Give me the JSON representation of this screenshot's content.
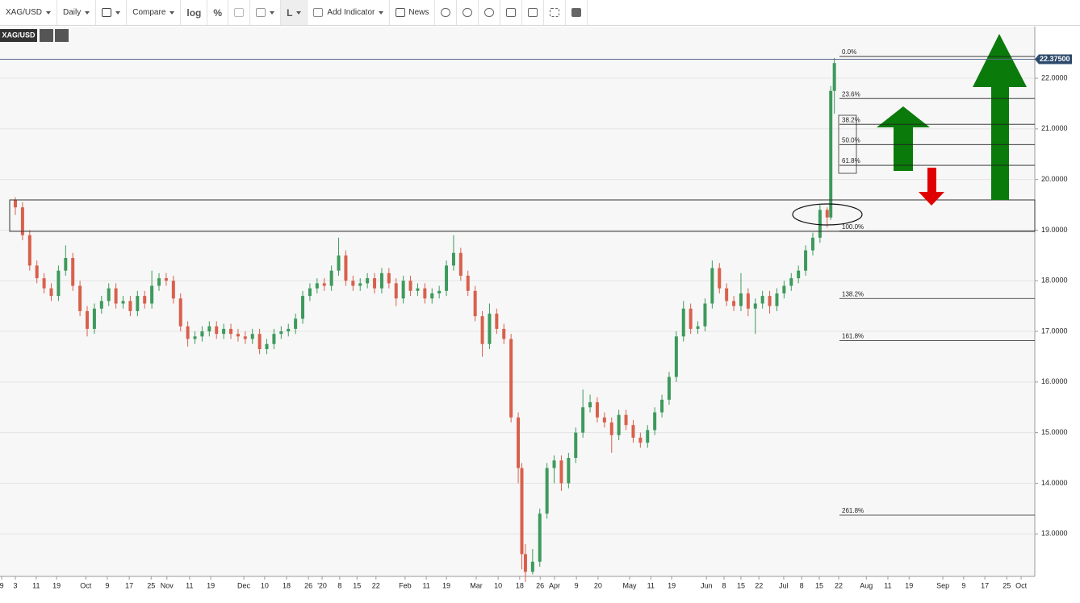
{
  "toolbar": {
    "symbol": "XAG/USD",
    "interval": "Daily",
    "compare": "Compare",
    "log": "log",
    "percent": "%",
    "line": "L",
    "add_indicator": "Add Indicator",
    "news": "News"
  },
  "chart_data": {
    "type": "candlestick",
    "symbol": "XAG/USD",
    "up_color": "#3d9a5c",
    "down_color": "#d9604c",
    "grid": true,
    "x": [
      0,
      2,
      4,
      6,
      8,
      10,
      12,
      14,
      16,
      18,
      20,
      22,
      24,
      26,
      28,
      30,
      32,
      34,
      36,
      38,
      40,
      42,
      44,
      46,
      48,
      50,
      52,
      54,
      56,
      58,
      60,
      62,
      64,
      66,
      68,
      70,
      72,
      74,
      76,
      78,
      80,
      82,
      84,
      86,
      88,
      90,
      92,
      94,
      96,
      98,
      100,
      102,
      104,
      106,
      108,
      110,
      112,
      114,
      116,
      118,
      120,
      122,
      124,
      126,
      128,
      130,
      132,
      134,
      136,
      138,
      140,
      141,
      142,
      144,
      146,
      148,
      150,
      152,
      154,
      156,
      158,
      160,
      162,
      164,
      166,
      168,
      170,
      172,
      174,
      176,
      178,
      180,
      182,
      184,
      186,
      188,
      190,
      192,
      194,
      196,
      198,
      200,
      202,
      204,
      206,
      208,
      210,
      212,
      214,
      216,
      218,
      220,
      222,
      224,
      226,
      227,
      228
    ],
    "open": [
      19.6,
      19.45,
      18.9,
      18.3,
      18.05,
      17.85,
      17.7,
      18.2,
      18.45,
      17.9,
      17.4,
      17.05,
      17.45,
      17.6,
      17.85,
      17.55,
      17.6,
      17.4,
      17.7,
      17.55,
      17.9,
      18.05,
      18.0,
      17.65,
      17.1,
      16.85,
      16.9,
      17.0,
      17.1,
      16.95,
      17.05,
      16.95,
      16.9,
      16.85,
      16.95,
      16.65,
      16.75,
      16.95,
      17.0,
      17.05,
      17.25,
      17.7,
      17.85,
      17.95,
      17.9,
      18.2,
      18.5,
      18.0,
      17.9,
      17.95,
      18.05,
      17.85,
      18.15,
      17.95,
      17.65,
      18.0,
      17.8,
      17.85,
      17.65,
      17.75,
      17.8,
      18.3,
      18.55,
      18.1,
      17.8,
      17.3,
      16.75,
      17.35,
      17.05,
      16.85,
      15.3,
      14.3,
      12.6,
      12.25,
      12.45,
      13.4,
      14.3,
      14.45,
      14.0,
      14.5,
      15.0,
      15.5,
      15.6,
      15.3,
      15.2,
      14.95,
      15.35,
      15.15,
      14.9,
      14.8,
      15.05,
      15.4,
      15.65,
      16.1,
      16.9,
      17.45,
      17.05,
      17.1,
      17.55,
      18.25,
      17.85,
      17.6,
      17.5,
      17.75,
      17.45,
      17.55,
      17.7,
      17.5,
      17.75,
      17.9,
      18.05,
      18.2,
      18.6,
      18.85,
      19.4,
      19.25,
      21.75
    ],
    "high": [
      19.65,
      19.55,
      19.0,
      18.4,
      18.15,
      17.95,
      18.3,
      18.7,
      18.55,
      18.0,
      17.5,
      17.55,
      17.7,
      17.95,
      17.95,
      17.7,
      17.7,
      17.8,
      17.8,
      18.2,
      18.15,
      18.15,
      18.1,
      17.75,
      17.2,
      17.0,
      17.1,
      17.2,
      17.2,
      17.15,
      17.15,
      17.05,
      17.0,
      17.05,
      17.05,
      16.85,
      17.05,
      17.1,
      17.15,
      17.35,
      17.8,
      17.95,
      18.05,
      18.05,
      18.3,
      18.85,
      18.6,
      18.1,
      18.05,
      18.15,
      18.15,
      18.25,
      18.25,
      18.05,
      18.1,
      18.1,
      17.95,
      17.95,
      17.85,
      17.9,
      18.4,
      18.9,
      18.65,
      18.2,
      17.9,
      17.4,
      17.55,
      17.45,
      17.15,
      16.95,
      15.4,
      14.4,
      12.8,
      12.7,
      13.5,
      14.4,
      14.55,
      14.55,
      14.6,
      15.1,
      15.85,
      15.75,
      15.7,
      15.4,
      15.3,
      15.45,
      15.45,
      15.25,
      15.0,
      15.15,
      15.5,
      15.75,
      16.2,
      17.0,
      17.6,
      17.55,
      17.2,
      17.65,
      18.4,
      18.35,
      17.95,
      17.7,
      18.15,
      17.85,
      17.65,
      17.8,
      17.8,
      17.85,
      18.0,
      18.15,
      18.3,
      18.7,
      18.95,
      19.5,
      19.45,
      21.85,
      22.4
    ],
    "low": [
      19.3,
      18.8,
      18.2,
      17.95,
      17.75,
      17.6,
      17.6,
      18.1,
      17.8,
      17.3,
      16.9,
      16.95,
      17.35,
      17.5,
      17.45,
      17.45,
      17.3,
      17.3,
      17.45,
      17.45,
      17.8,
      17.9,
      17.55,
      17.0,
      16.7,
      16.75,
      16.8,
      16.9,
      16.85,
      16.85,
      16.85,
      16.8,
      16.75,
      16.75,
      16.55,
      16.55,
      16.65,
      16.85,
      16.9,
      16.95,
      17.15,
      17.6,
      17.75,
      17.8,
      17.8,
      18.1,
      17.9,
      17.8,
      17.8,
      17.85,
      17.75,
      17.75,
      17.85,
      17.5,
      17.55,
      17.7,
      17.7,
      17.55,
      17.55,
      17.65,
      17.7,
      18.2,
      18.0,
      17.7,
      17.2,
      16.5,
      16.65,
      16.95,
      16.75,
      15.2,
      14.0,
      12.3,
      12.05,
      12.2,
      12.35,
      13.3,
      14.0,
      13.85,
      13.9,
      14.4,
      14.9,
      15.4,
      15.2,
      15.1,
      14.6,
      14.85,
      15.05,
      14.8,
      14.7,
      14.7,
      14.95,
      15.3,
      15.55,
      16.0,
      16.8,
      16.95,
      16.95,
      17.0,
      17.45,
      17.75,
      17.5,
      17.4,
      17.4,
      17.3,
      16.95,
      17.45,
      17.35,
      17.4,
      17.65,
      17.8,
      17.95,
      18.1,
      18.5,
      18.75,
      19.05,
      19.2,
      21.3
    ],
    "close": [
      19.45,
      18.9,
      18.3,
      18.05,
      17.85,
      17.7,
      18.2,
      18.45,
      17.9,
      17.4,
      17.05,
      17.45,
      17.6,
      17.85,
      17.55,
      17.6,
      17.4,
      17.7,
      17.55,
      17.9,
      18.05,
      18.0,
      17.65,
      17.1,
      16.85,
      16.9,
      17.0,
      17.1,
      16.95,
      17.05,
      16.95,
      16.9,
      16.85,
      16.95,
      16.65,
      16.75,
      16.95,
      17.0,
      17.05,
      17.25,
      17.7,
      17.85,
      17.95,
      17.9,
      18.2,
      18.5,
      18.0,
      17.9,
      17.95,
      18.05,
      17.85,
      18.15,
      17.95,
      17.65,
      18.0,
      17.8,
      17.85,
      17.65,
      17.75,
      17.8,
      18.3,
      18.55,
      18.1,
      17.8,
      17.3,
      16.75,
      17.35,
      17.05,
      16.85,
      15.3,
      14.3,
      12.6,
      12.25,
      12.45,
      13.4,
      14.3,
      14.45,
      14.0,
      14.5,
      15.0,
      15.5,
      15.6,
      15.3,
      15.2,
      14.95,
      15.35,
      15.15,
      14.9,
      14.8,
      15.05,
      15.4,
      15.65,
      16.1,
      16.9,
      17.45,
      17.05,
      17.1,
      17.55,
      18.25,
      17.85,
      17.6,
      17.5,
      17.75,
      17.45,
      17.55,
      17.7,
      17.5,
      17.75,
      17.9,
      18.05,
      18.2,
      18.6,
      18.85,
      19.4,
      19.25,
      21.75,
      22.3
    ],
    "xlim": [
      -4.27,
      283.8
    ],
    "xticks": [
      {
        "value": -3.8,
        "label": "9"
      },
      {
        "value": 0,
        "label": "3"
      },
      {
        "value": 5.8,
        "label": "11"
      },
      {
        "value": 11.5,
        "label": "19"
      },
      {
        "value": 19.6,
        "label": "Oct"
      },
      {
        "value": 25.6,
        "label": "9"
      },
      {
        "value": 31.7,
        "label": "17"
      },
      {
        "value": 37.8,
        "label": "25"
      },
      {
        "value": 42.2,
        "label": "Nov"
      },
      {
        "value": 48.5,
        "label": "11"
      },
      {
        "value": 54.4,
        "label": "19"
      },
      {
        "value": 63.6,
        "label": "Dec"
      },
      {
        "value": 69.4,
        "label": "10"
      },
      {
        "value": 75.5,
        "label": "18"
      },
      {
        "value": 81.6,
        "label": "26"
      },
      {
        "value": 85.4,
        "label": "'20"
      },
      {
        "value": 90.3,
        "label": "8"
      },
      {
        "value": 95.1,
        "label": "15"
      },
      {
        "value": 100.4,
        "label": "22"
      },
      {
        "value": 108.5,
        "label": "Feb"
      },
      {
        "value": 114.4,
        "label": "11"
      },
      {
        "value": 120,
        "label": "19"
      },
      {
        "value": 128.3,
        "label": "Mar"
      },
      {
        "value": 134.4,
        "label": "10"
      },
      {
        "value": 140.4,
        "label": "18"
      },
      {
        "value": 146.1,
        "label": "26"
      },
      {
        "value": 150.1,
        "label": "Apr"
      },
      {
        "value": 156.2,
        "label": "9"
      },
      {
        "value": 162.2,
        "label": "20"
      },
      {
        "value": 171,
        "label": "May"
      },
      {
        "value": 176.9,
        "label": "11"
      },
      {
        "value": 182.7,
        "label": "19"
      },
      {
        "value": 192.4,
        "label": "Jun"
      },
      {
        "value": 197.3,
        "label": "8"
      },
      {
        "value": 202,
        "label": "15"
      },
      {
        "value": 207,
        "label": "22"
      },
      {
        "value": 213.9,
        "label": "Jul"
      },
      {
        "value": 218.9,
        "label": "8"
      },
      {
        "value": 223.8,
        "label": "15"
      },
      {
        "value": 229.2,
        "label": "22"
      },
      {
        "value": 236.9,
        "label": "Aug"
      },
      {
        "value": 242.9,
        "label": "11"
      },
      {
        "value": 248.8,
        "label": "19"
      },
      {
        "value": 258.2,
        "label": "Sep"
      },
      {
        "value": 264,
        "label": "9"
      },
      {
        "value": 269.9,
        "label": "17"
      },
      {
        "value": 276,
        "label": "25"
      },
      {
        "value": 280,
        "label": "Oct"
      }
    ],
    "ylim": [
      12.16,
      23.02
    ],
    "yticks": [
      {
        "value": 13,
        "label": "13.0000"
      },
      {
        "value": 14,
        "label": "14.0000"
      },
      {
        "value": 15,
        "label": "15.0000"
      },
      {
        "value": 16,
        "label": "16.0000"
      },
      {
        "value": 17,
        "label": "17.0000"
      },
      {
        "value": 18,
        "label": "18.0000"
      },
      {
        "value": 19,
        "label": "19.0000"
      },
      {
        "value": 20,
        "label": "20.0000"
      },
      {
        "value": 21,
        "label": "21.0000"
      },
      {
        "value": 22,
        "label": "22.0000"
      }
    ],
    "last_price": {
      "value": 22.375,
      "label": "22.37500"
    },
    "fib_levels": [
      {
        "label": "0.0%",
        "value": 22.43
      },
      {
        "label": "23.6%",
        "value": 21.6
      },
      {
        "label": "38.2%",
        "value": 21.09
      },
      {
        "label": "50.0%",
        "value": 20.69
      },
      {
        "label": "61.8%",
        "value": 20.28
      },
      {
        "label": "100.0%",
        "value": 18.98
      },
      {
        "label": "138.2%",
        "value": 17.65
      },
      {
        "label": "161.8%",
        "value": 16.82
      },
      {
        "label": "261.8%",
        "value": 13.37
      }
    ]
  }
}
